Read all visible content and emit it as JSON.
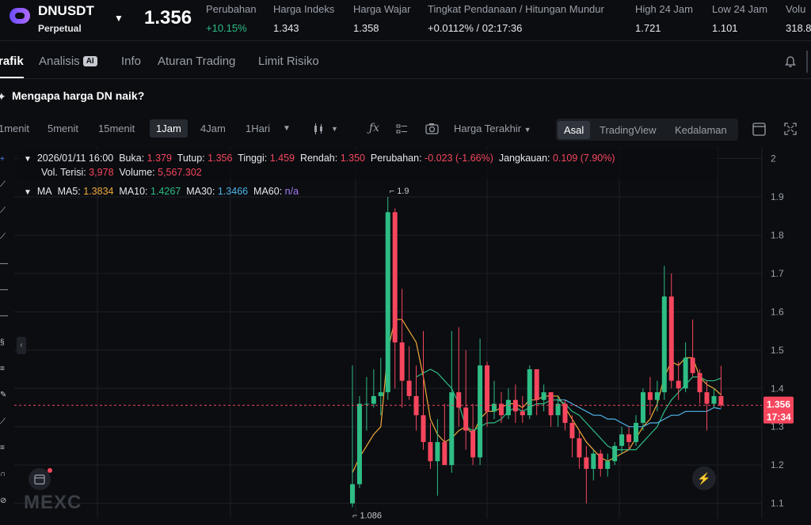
{
  "header": {
    "symbol": "DNUSDT",
    "contract_type": "Perpetual",
    "last_price": "1.356",
    "stats": [
      {
        "label": "Perubahan",
        "value": "+10.15%",
        "tone": "green"
      },
      {
        "label": "Harga Indeks",
        "value": "1.343",
        "tone": "normal"
      },
      {
        "label": "Harga Wajar",
        "value": "1.358",
        "tone": "normal"
      },
      {
        "label": "Tingkat Pendanaan / Hitungan Mundur",
        "value": "+0.0112% / 02:17:36",
        "tone": "normal"
      },
      {
        "label": "High 24 Jam",
        "value": "1.721",
        "tone": "normal"
      },
      {
        "label": "Low 24 Jam",
        "value": "1.101",
        "tone": "normal"
      },
      {
        "label": "Volu",
        "value": "318.8",
        "tone": "normal"
      }
    ]
  },
  "tabs": [
    {
      "label": "rafik",
      "active": true
    },
    {
      "label": "Analisis",
      "badge": "AI"
    },
    {
      "label": "Info"
    },
    {
      "label": "Aturan Trading"
    },
    {
      "label": "Limit Risiko"
    }
  ],
  "question": {
    "text": "Mengapa harga DN naik?"
  },
  "toolbar": {
    "timeframes": [
      "1menit",
      "5menit",
      "15menit",
      "1Jam",
      "4Jam",
      "1Hari"
    ],
    "active_timeframe": "1Jam",
    "price_type": "Harga Terakhir",
    "views": [
      "Asal",
      "TradingView",
      "Kedalaman"
    ],
    "active_view": "Asal"
  },
  "info": {
    "datetime": "2026/01/11 16:00",
    "open_label": "Buka:",
    "open": "1.379",
    "close_label": "Tutup:",
    "close": "1.356",
    "high_label": "Tinggi:",
    "high": "1.459",
    "low_label": "Rendah:",
    "low": "1.350",
    "change_label": "Perubahan:",
    "change": "-0.023 (-1.66%)",
    "range_label": "Jangkauan:",
    "range": "0.109 (7.90%)",
    "oi_label": "Vol. Terisi:",
    "oi": "3,978",
    "volume_label": "Volume:",
    "volume": "5,567.302"
  },
  "ma": {
    "title": "MA",
    "ma5_label": "MA5:",
    "ma5": "1.3834",
    "ma10_label": "MA10:",
    "ma10": "1.4267",
    "ma30_label": "MA30:",
    "ma30": "1.3466",
    "ma60_label": "MA60:",
    "ma60": "n/a"
  },
  "colors": {
    "up": "#2ebd85",
    "down": "#f6465d",
    "ma5": "#f0a93a",
    "ma10": "#2ebd85",
    "ma30": "#4fb3e8"
  },
  "watermark": "MEXC",
  "chart_data": {
    "type": "candlestick",
    "ylim": [
      1.06,
      2.03
    ],
    "yticks": [
      "2",
      "1.9",
      "1.8",
      "1.7",
      "1.6",
      "1.5",
      "1.4",
      "1.3",
      "1.2",
      "1.1"
    ],
    "current_price_label": "1.356",
    "countdown_label": "17:34",
    "max_label": "1.9",
    "min_label": "1.086",
    "candles": [
      [
        1.1,
        1.15,
        1.46,
        1.09
      ],
      [
        1.15,
        1.36,
        1.38,
        1.14
      ],
      [
        1.36,
        1.36,
        1.43,
        1.29
      ],
      [
        1.36,
        1.38,
        1.45,
        1.35
      ],
      [
        1.38,
        1.39,
        1.48,
        1.33
      ],
      [
        1.39,
        1.86,
        1.9,
        1.37
      ],
      [
        1.86,
        1.52,
        1.87,
        1.4
      ],
      [
        1.52,
        1.42,
        1.66,
        1.35
      ],
      [
        1.42,
        1.38,
        1.51,
        1.37
      ],
      [
        1.38,
        1.33,
        1.46,
        1.29
      ],
      [
        1.33,
        1.26,
        1.55,
        1.24
      ],
      [
        1.26,
        1.21,
        1.31,
        1.19
      ],
      [
        1.21,
        1.26,
        1.32,
        1.12
      ],
      [
        1.26,
        1.2,
        1.36,
        1.2
      ],
      [
        1.2,
        1.39,
        1.55,
        1.18
      ],
      [
        1.39,
        1.35,
        1.56,
        1.3
      ],
      [
        1.35,
        1.29,
        1.5,
        1.24
      ],
      [
        1.29,
        1.22,
        1.36,
        1.2
      ],
      [
        1.22,
        1.46,
        1.53,
        1.2
      ],
      [
        1.46,
        1.34,
        1.47,
        1.3
      ],
      [
        1.34,
        1.36,
        1.42,
        1.32
      ],
      [
        1.36,
        1.33,
        1.39,
        1.31
      ],
      [
        1.33,
        1.37,
        1.4,
        1.32
      ],
      [
        1.37,
        1.34,
        1.41,
        1.31
      ],
      [
        1.34,
        1.33,
        1.38,
        1.31
      ],
      [
        1.33,
        1.45,
        1.46,
        1.32
      ],
      [
        1.45,
        1.37,
        1.45,
        1.33
      ],
      [
        1.37,
        1.39,
        1.41,
        1.34
      ],
      [
        1.39,
        1.33,
        1.39,
        1.3
      ],
      [
        1.33,
        1.36,
        1.38,
        1.3
      ],
      [
        1.36,
        1.31,
        1.37,
        1.29
      ],
      [
        1.31,
        1.27,
        1.33,
        1.22
      ],
      [
        1.27,
        1.22,
        1.29,
        1.19
      ],
      [
        1.22,
        1.19,
        1.25,
        1.1
      ],
      [
        1.19,
        1.23,
        1.24,
        1.16
      ],
      [
        1.23,
        1.19,
        1.24,
        1.17
      ],
      [
        1.19,
        1.21,
        1.23,
        1.17
      ],
      [
        1.21,
        1.25,
        1.26,
        1.2
      ],
      [
        1.25,
        1.28,
        1.3,
        1.23
      ],
      [
        1.28,
        1.26,
        1.3,
        1.24
      ],
      [
        1.26,
        1.31,
        1.33,
        1.25
      ],
      [
        1.31,
        1.39,
        1.4,
        1.29
      ],
      [
        1.39,
        1.37,
        1.43,
        1.33
      ],
      [
        1.37,
        1.39,
        1.42,
        1.34
      ],
      [
        1.39,
        1.64,
        1.72,
        1.37
      ],
      [
        1.64,
        1.42,
        1.7,
        1.4
      ],
      [
        1.42,
        1.4,
        1.47,
        1.37
      ],
      [
        1.4,
        1.48,
        1.52,
        1.39
      ],
      [
        1.48,
        1.44,
        1.58,
        1.43
      ],
      [
        1.44,
        1.39,
        1.45,
        1.36
      ],
      [
        1.39,
        1.36,
        1.42,
        1.29
      ],
      [
        1.36,
        1.38,
        1.4,
        1.35
      ],
      [
        1.38,
        1.356,
        1.459,
        1.35
      ]
    ],
    "ma5": [
      1.18,
      1.22,
      1.25,
      1.28,
      1.3,
      1.5,
      1.58,
      1.58,
      1.55,
      1.52,
      1.43,
      1.32,
      1.28,
      1.26,
      1.27,
      1.29,
      1.3,
      1.28,
      1.32,
      1.34,
      1.34,
      1.35,
      1.36,
      1.36,
      1.35,
      1.37,
      1.37,
      1.38,
      1.38,
      1.38,
      1.35,
      1.32,
      1.29,
      1.26,
      1.24,
      1.22,
      1.21,
      1.22,
      1.23,
      1.24,
      1.27,
      1.3,
      1.32,
      1.36,
      1.43,
      1.47,
      1.46,
      1.48,
      1.48,
      1.43,
      1.41,
      1.4,
      1.3834
    ],
    "ma10": [
      null,
      null,
      null,
      null,
      null,
      null,
      null,
      null,
      null,
      1.43,
      1.44,
      1.45,
      1.44,
      1.42,
      1.4,
      1.36,
      1.3,
      1.29,
      1.3,
      1.31,
      1.31,
      1.32,
      1.34,
      1.35,
      1.34,
      1.35,
      1.36,
      1.36,
      1.37,
      1.37,
      1.36,
      1.34,
      1.33,
      1.31,
      1.29,
      1.27,
      1.25,
      1.24,
      1.24,
      1.24,
      1.24,
      1.26,
      1.28,
      1.3,
      1.34,
      1.37,
      1.39,
      1.41,
      1.43,
      1.43,
      1.42,
      1.42,
      1.4267
    ],
    "ma30": [
      null,
      null,
      null,
      null,
      null,
      null,
      null,
      null,
      null,
      null,
      null,
      null,
      null,
      null,
      null,
      null,
      null,
      null,
      null,
      null,
      null,
      null,
      null,
      null,
      null,
      null,
      null,
      null,
      null,
      1.37,
      1.37,
      1.36,
      1.35,
      1.34,
      1.33,
      1.33,
      1.32,
      1.32,
      1.31,
      1.3,
      1.3,
      1.3,
      1.31,
      1.31,
      1.32,
      1.33,
      1.33,
      1.34,
      1.34,
      1.34,
      1.34,
      1.35,
      1.3466
    ]
  }
}
